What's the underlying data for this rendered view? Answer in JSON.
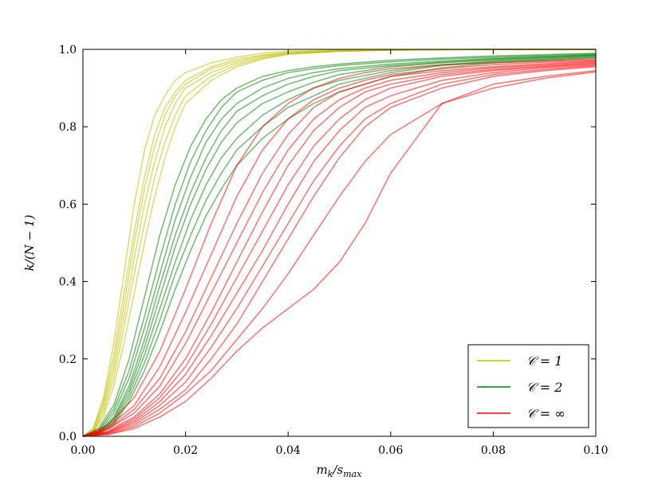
{
  "chart_data": {
    "type": "line",
    "xlabel": "m_k/s_max",
    "ylabel": "k/(N − 1)",
    "xlim": [
      0.0,
      0.1
    ],
    "ylim": [
      0.0,
      1.0
    ],
    "xticks": [
      0.0,
      0.02,
      0.04,
      0.06,
      0.08,
      0.1
    ],
    "xtick_labels": [
      "0.00",
      "0.02",
      "0.04",
      "0.06",
      "0.08",
      "0.10"
    ],
    "yticks": [
      0.0,
      0.2,
      0.4,
      0.6,
      0.8,
      1.0
    ],
    "ytick_labels": [
      "0.0",
      "0.2",
      "0.4",
      "0.6",
      "0.8",
      "1.0"
    ],
    "grid": false,
    "legend_position": "bottom-right",
    "colors": {
      "yellow": "#bfbf00",
      "green": "#008000",
      "red": "#ff0000"
    },
    "series": [
      {
        "name": "𝒞 = 1",
        "group": "yellow",
        "x": [
          0,
          0.002,
          0.004,
          0.006,
          0.008,
          0.01,
          0.012,
          0.014,
          0.016,
          0.018,
          0.02,
          0.025,
          0.03,
          0.035,
          0.04,
          0.05,
          0.06,
          0.08,
          0.1
        ],
        "values": [
          0,
          0.02,
          0.1,
          0.24,
          0.42,
          0.6,
          0.74,
          0.83,
          0.88,
          0.92,
          0.94,
          0.965,
          0.98,
          0.99,
          0.995,
          0.998,
          0.999,
          1.0,
          1.0
        ]
      },
      {
        "group": "yellow",
        "x": [
          0,
          0.002,
          0.004,
          0.006,
          0.008,
          0.01,
          0.012,
          0.014,
          0.016,
          0.018,
          0.02,
          0.025,
          0.03,
          0.035,
          0.04,
          0.05,
          0.06,
          0.08,
          0.1
        ],
        "values": [
          0,
          0.02,
          0.09,
          0.21,
          0.37,
          0.53,
          0.67,
          0.78,
          0.85,
          0.89,
          0.92,
          0.955,
          0.975,
          0.985,
          0.993,
          0.997,
          0.999,
          1.0,
          1.0
        ]
      },
      {
        "group": "yellow",
        "x": [
          0,
          0.002,
          0.004,
          0.006,
          0.008,
          0.01,
          0.012,
          0.014,
          0.016,
          0.018,
          0.02,
          0.025,
          0.03,
          0.035,
          0.04,
          0.05,
          0.06,
          0.08,
          0.1
        ],
        "values": [
          0,
          0.015,
          0.08,
          0.19,
          0.34,
          0.5,
          0.64,
          0.75,
          0.83,
          0.88,
          0.91,
          0.95,
          0.97,
          0.983,
          0.99,
          0.996,
          0.998,
          1.0,
          1.0
        ]
      },
      {
        "group": "yellow",
        "x": [
          0,
          0.002,
          0.004,
          0.006,
          0.008,
          0.01,
          0.012,
          0.014,
          0.016,
          0.018,
          0.02,
          0.025,
          0.03,
          0.035,
          0.04,
          0.05,
          0.06,
          0.08,
          0.1
        ],
        "values": [
          0,
          0.012,
          0.07,
          0.17,
          0.31,
          0.46,
          0.6,
          0.71,
          0.8,
          0.86,
          0.9,
          0.94,
          0.965,
          0.98,
          0.99,
          0.995,
          0.998,
          1.0,
          1.0
        ]
      },
      {
        "group": "yellow",
        "x": [
          0,
          0.002,
          0.004,
          0.006,
          0.008,
          0.01,
          0.012,
          0.014,
          0.016,
          0.018,
          0.02,
          0.025,
          0.03,
          0.035,
          0.04,
          0.05,
          0.06,
          0.08,
          0.1
        ],
        "values": [
          0,
          0.01,
          0.06,
          0.15,
          0.28,
          0.42,
          0.55,
          0.67,
          0.76,
          0.83,
          0.88,
          0.93,
          0.96,
          0.977,
          0.988,
          0.995,
          0.998,
          1.0,
          1.0
        ]
      },
      {
        "group": "yellow",
        "x": [
          0,
          0.002,
          0.004,
          0.006,
          0.008,
          0.01,
          0.012,
          0.014,
          0.016,
          0.018,
          0.02,
          0.025,
          0.03,
          0.035,
          0.04,
          0.05,
          0.06,
          0.08,
          0.1
        ],
        "values": [
          0,
          0.01,
          0.05,
          0.13,
          0.24,
          0.37,
          0.5,
          0.62,
          0.72,
          0.8,
          0.86,
          0.92,
          0.955,
          0.975,
          0.987,
          0.995,
          0.998,
          1.0,
          1.0
        ]
      },
      {
        "name": "𝒞 = 2",
        "group": "green",
        "x": [
          0,
          0.003,
          0.006,
          0.009,
          0.012,
          0.015,
          0.018,
          0.021,
          0.024,
          0.027,
          0.03,
          0.035,
          0.04,
          0.045,
          0.05,
          0.06,
          0.07,
          0.08,
          0.1
        ],
        "values": [
          0,
          0.02,
          0.08,
          0.2,
          0.36,
          0.52,
          0.65,
          0.75,
          0.82,
          0.87,
          0.9,
          0.93,
          0.945,
          0.955,
          0.962,
          0.972,
          0.978,
          0.983,
          0.99
        ]
      },
      {
        "group": "green",
        "x": [
          0,
          0.003,
          0.006,
          0.009,
          0.012,
          0.015,
          0.018,
          0.021,
          0.024,
          0.027,
          0.03,
          0.035,
          0.04,
          0.045,
          0.05,
          0.06,
          0.07,
          0.08,
          0.1
        ],
        "values": [
          0,
          0.015,
          0.07,
          0.17,
          0.31,
          0.46,
          0.6,
          0.71,
          0.79,
          0.85,
          0.89,
          0.92,
          0.94,
          0.95,
          0.958,
          0.968,
          0.975,
          0.98,
          0.988
        ]
      },
      {
        "group": "green",
        "x": [
          0,
          0.003,
          0.006,
          0.009,
          0.012,
          0.015,
          0.018,
          0.021,
          0.024,
          0.027,
          0.03,
          0.035,
          0.04,
          0.045,
          0.05,
          0.06,
          0.07,
          0.08,
          0.1
        ],
        "values": [
          0,
          0.012,
          0.06,
          0.15,
          0.28,
          0.42,
          0.56,
          0.67,
          0.76,
          0.82,
          0.86,
          0.9,
          0.925,
          0.94,
          0.95,
          0.962,
          0.97,
          0.977,
          0.986
        ]
      },
      {
        "group": "green",
        "x": [
          0,
          0.003,
          0.006,
          0.009,
          0.012,
          0.015,
          0.018,
          0.021,
          0.024,
          0.027,
          0.03,
          0.035,
          0.04,
          0.045,
          0.05,
          0.06,
          0.07,
          0.08,
          0.1
        ],
        "values": [
          0,
          0.01,
          0.05,
          0.13,
          0.25,
          0.39,
          0.52,
          0.63,
          0.72,
          0.79,
          0.84,
          0.88,
          0.91,
          0.93,
          0.945,
          0.958,
          0.967,
          0.975,
          0.985
        ]
      },
      {
        "group": "green",
        "x": [
          0,
          0.003,
          0.006,
          0.009,
          0.012,
          0.015,
          0.018,
          0.021,
          0.024,
          0.027,
          0.03,
          0.035,
          0.04,
          0.045,
          0.05,
          0.06,
          0.07,
          0.08,
          0.1
        ],
        "values": [
          0,
          0.01,
          0.045,
          0.12,
          0.23,
          0.36,
          0.49,
          0.6,
          0.69,
          0.76,
          0.81,
          0.86,
          0.89,
          0.915,
          0.935,
          0.955,
          0.965,
          0.973,
          0.984
        ]
      },
      {
        "group": "green",
        "x": [
          0,
          0.003,
          0.006,
          0.009,
          0.012,
          0.015,
          0.018,
          0.021,
          0.024,
          0.027,
          0.03,
          0.035,
          0.04,
          0.045,
          0.05,
          0.06,
          0.07,
          0.08,
          0.1
        ],
        "values": [
          0,
          0.008,
          0.04,
          0.11,
          0.21,
          0.33,
          0.45,
          0.56,
          0.65,
          0.72,
          0.77,
          0.83,
          0.87,
          0.9,
          0.92,
          0.945,
          0.96,
          0.97,
          0.982
        ]
      },
      {
        "group": "green",
        "x": [
          0,
          0.003,
          0.006,
          0.009,
          0.012,
          0.015,
          0.018,
          0.021,
          0.024,
          0.027,
          0.03,
          0.035,
          0.04,
          0.045,
          0.05,
          0.06,
          0.07,
          0.08,
          0.1
        ],
        "values": [
          0,
          0.007,
          0.035,
          0.1,
          0.19,
          0.3,
          0.42,
          0.52,
          0.61,
          0.68,
          0.74,
          0.8,
          0.85,
          0.88,
          0.91,
          0.94,
          0.958,
          0.968,
          0.98
        ]
      },
      {
        "group": "green",
        "x": [
          0,
          0.003,
          0.006,
          0.009,
          0.012,
          0.015,
          0.018,
          0.021,
          0.024,
          0.027,
          0.03,
          0.035,
          0.04,
          0.045,
          0.05,
          0.06,
          0.07,
          0.08,
          0.1
        ],
        "values": [
          0,
          0.006,
          0.03,
          0.09,
          0.17,
          0.27,
          0.38,
          0.48,
          0.57,
          0.64,
          0.7,
          0.77,
          0.82,
          0.86,
          0.89,
          0.93,
          0.952,
          0.965,
          0.978
        ]
      },
      {
        "name": "𝒞 = ∞",
        "group": "red",
        "x": [
          0,
          0.005,
          0.01,
          0.015,
          0.02,
          0.025,
          0.03,
          0.035,
          0.04,
          0.045,
          0.05,
          0.055,
          0.06,
          0.07,
          0.08,
          0.09,
          0.1
        ],
        "values": [
          0,
          0.03,
          0.1,
          0.22,
          0.38,
          0.55,
          0.7,
          0.8,
          0.86,
          0.9,
          0.925,
          0.94,
          0.95,
          0.96,
          0.965,
          0.97,
          0.975
        ]
      },
      {
        "group": "red",
        "x": [
          0,
          0.005,
          0.01,
          0.015,
          0.02,
          0.025,
          0.03,
          0.035,
          0.04,
          0.045,
          0.05,
          0.055,
          0.06,
          0.07,
          0.08,
          0.09,
          0.1
        ],
        "values": [
          0,
          0.025,
          0.08,
          0.18,
          0.32,
          0.47,
          0.62,
          0.74,
          0.82,
          0.87,
          0.9,
          0.92,
          0.935,
          0.95,
          0.96,
          0.967,
          0.972
        ]
      },
      {
        "group": "red",
        "x": [
          0,
          0.005,
          0.01,
          0.015,
          0.02,
          0.025,
          0.03,
          0.035,
          0.04,
          0.045,
          0.05,
          0.055,
          0.06,
          0.07,
          0.08,
          0.09,
          0.1
        ],
        "values": [
          0,
          0.02,
          0.07,
          0.15,
          0.27,
          0.41,
          0.55,
          0.68,
          0.78,
          0.85,
          0.89,
          0.91,
          0.93,
          0.945,
          0.955,
          0.963,
          0.97
        ]
      },
      {
        "group": "red",
        "x": [
          0,
          0.005,
          0.01,
          0.015,
          0.02,
          0.025,
          0.03,
          0.035,
          0.04,
          0.045,
          0.05,
          0.055,
          0.06,
          0.07,
          0.08,
          0.09,
          0.1
        ],
        "values": [
          0,
          0.02,
          0.06,
          0.13,
          0.24,
          0.37,
          0.5,
          0.63,
          0.74,
          0.82,
          0.87,
          0.9,
          0.92,
          0.94,
          0.952,
          0.96,
          0.968
        ]
      },
      {
        "group": "red",
        "x": [
          0,
          0.005,
          0.01,
          0.015,
          0.02,
          0.025,
          0.03,
          0.035,
          0.04,
          0.045,
          0.05,
          0.055,
          0.06,
          0.07,
          0.08,
          0.09,
          0.1
        ],
        "values": [
          0,
          0.015,
          0.05,
          0.11,
          0.2,
          0.32,
          0.45,
          0.58,
          0.7,
          0.79,
          0.85,
          0.89,
          0.91,
          0.935,
          0.948,
          0.957,
          0.965
        ]
      },
      {
        "group": "red",
        "x": [
          0,
          0.005,
          0.01,
          0.015,
          0.02,
          0.025,
          0.03,
          0.035,
          0.04,
          0.045,
          0.05,
          0.055,
          0.06,
          0.07,
          0.08,
          0.09,
          0.1
        ],
        "values": [
          0,
          0.012,
          0.045,
          0.1,
          0.18,
          0.29,
          0.41,
          0.53,
          0.65,
          0.75,
          0.82,
          0.87,
          0.9,
          0.93,
          0.945,
          0.955,
          0.963
        ]
      },
      {
        "group": "red",
        "x": [
          0,
          0.005,
          0.01,
          0.015,
          0.02,
          0.025,
          0.03,
          0.035,
          0.04,
          0.045,
          0.05,
          0.055,
          0.06,
          0.07,
          0.08,
          0.09,
          0.1
        ],
        "values": [
          0,
          0.01,
          0.04,
          0.09,
          0.16,
          0.26,
          0.37,
          0.48,
          0.6,
          0.71,
          0.79,
          0.85,
          0.88,
          0.92,
          0.94,
          0.952,
          0.96
        ]
      },
      {
        "group": "red",
        "x": [
          0,
          0.005,
          0.01,
          0.015,
          0.02,
          0.025,
          0.03,
          0.035,
          0.04,
          0.045,
          0.05,
          0.055,
          0.06,
          0.07,
          0.08,
          0.09,
          0.1
        ],
        "values": [
          0,
          0.01,
          0.035,
          0.08,
          0.14,
          0.23,
          0.33,
          0.44,
          0.55,
          0.66,
          0.75,
          0.82,
          0.86,
          0.91,
          0.935,
          0.948,
          0.958
        ]
      },
      {
        "group": "red",
        "x": [
          0,
          0.005,
          0.01,
          0.015,
          0.02,
          0.025,
          0.03,
          0.035,
          0.04,
          0.045,
          0.05,
          0.055,
          0.06,
          0.07,
          0.08,
          0.09,
          0.1
        ],
        "values": [
          0,
          0.008,
          0.03,
          0.07,
          0.12,
          0.2,
          0.29,
          0.4,
          0.51,
          0.62,
          0.72,
          0.8,
          0.85,
          0.9,
          0.93,
          0.945,
          0.955
        ]
      },
      {
        "group": "red",
        "x": [
          0,
          0.005,
          0.01,
          0.015,
          0.02,
          0.025,
          0.03,
          0.035,
          0.04,
          0.045,
          0.05,
          0.055,
          0.06,
          0.07,
          0.08,
          0.09,
          0.1
        ],
        "values": [
          0,
          0.006,
          0.025,
          0.06,
          0.11,
          0.17,
          0.25,
          0.33,
          0.42,
          0.52,
          0.62,
          0.71,
          0.78,
          0.86,
          0.9,
          0.925,
          0.942
        ]
      },
      {
        "group": "red",
        "x": [
          0,
          0.005,
          0.01,
          0.015,
          0.02,
          0.025,
          0.03,
          0.035,
          0.04,
          0.045,
          0.05,
          0.055,
          0.06,
          0.07,
          0.08,
          0.09,
          0.1
        ],
        "values": [
          0,
          0.005,
          0.02,
          0.05,
          0.09,
          0.15,
          0.22,
          0.28,
          0.33,
          0.38,
          0.45,
          0.55,
          0.68,
          0.86,
          0.91,
          0.93,
          0.945
        ]
      }
    ]
  }
}
